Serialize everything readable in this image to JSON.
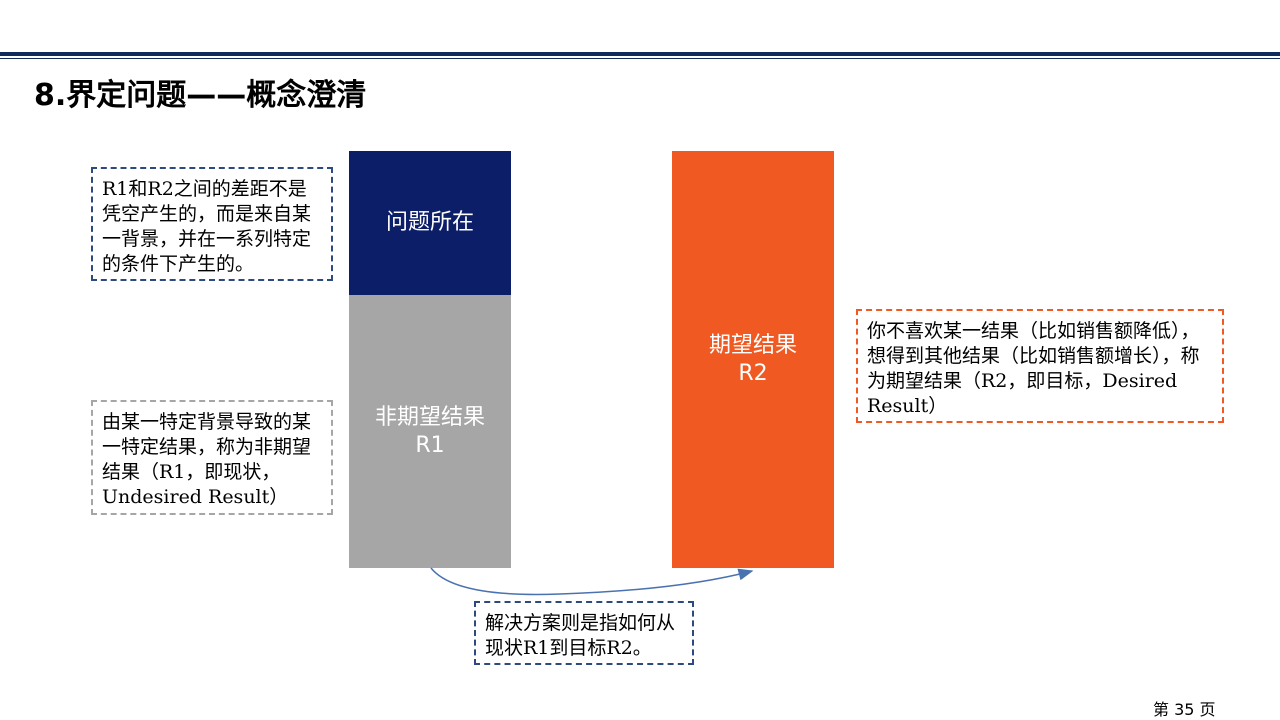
{
  "title": "8.界定问题——概念澄清",
  "blocks": {
    "problem": {
      "label": "问题所在",
      "color": "#0d1e68"
    },
    "undesired": {
      "label": "非期望结果",
      "code": "R1",
      "color": "#a6a6a6"
    },
    "desired": {
      "label": "期望结果",
      "code": "R2",
      "color": "#f05a22"
    }
  },
  "notes": {
    "background": "R1和R2之间的差距不是凭空产生的，而是来自某一背景，并在一系列特定的条件下产生的。",
    "undesired": "由某一特定背景导致的某一特定结果，称为非期望结果（R1，即现状，Undesired Result）",
    "desired": "你不喜欢某一结果（比如销售额降低），想得到其他结果（比如销售额增长），称为期望结果（R2，即目标，Desired Result）",
    "solution": "解决方案则是指如何从现状R1到目标R2。"
  },
  "footer": {
    "page_number": "第 35 页"
  }
}
